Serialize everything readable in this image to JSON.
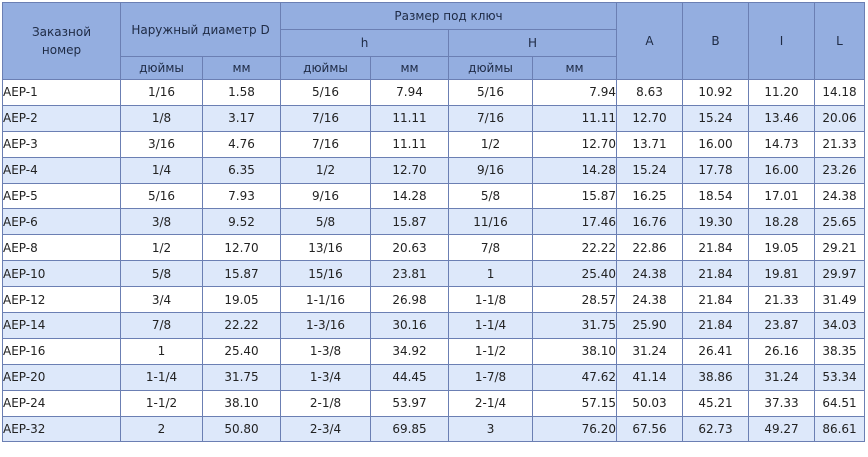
{
  "headers": {
    "order_number": "Заказной номер",
    "outer_diameter": "Наружный диаметр D",
    "wrench_size": "Размер под ключ",
    "h": "h",
    "H": "H",
    "A": "A",
    "B": "B",
    "I": "I",
    "L": "L",
    "inches": "дюймы",
    "mm": "мм"
  },
  "rows": [
    {
      "code": "AEP-1",
      "d_in": "1/16",
      "d_mm": "1.58",
      "h_in": "5/16",
      "h_mm": "7.94",
      "H_in": "5/16",
      "H_mm": "7.94",
      "A": "8.63",
      "B": "10.92",
      "I": "11.20",
      "L": "14.18"
    },
    {
      "code": "AEP-2",
      "d_in": "1/8",
      "d_mm": "3.17",
      "h_in": "7/16",
      "h_mm": "11.11",
      "H_in": "7/16",
      "H_mm": "11.11",
      "A": "12.70",
      "B": "15.24",
      "I": "13.46",
      "L": "20.06"
    },
    {
      "code": "AEP-3",
      "d_in": "3/16",
      "d_mm": "4.76",
      "h_in": "7/16",
      "h_mm": "11.11",
      "H_in": "1/2",
      "H_mm": "12.70",
      "A": "13.71",
      "B": "16.00",
      "I": "14.73",
      "L": "21.33"
    },
    {
      "code": "AEP-4",
      "d_in": "1/4",
      "d_mm": "6.35",
      "h_in": "1/2",
      "h_mm": "12.70",
      "H_in": "9/16",
      "H_mm": "14.28",
      "A": "15.24",
      "B": "17.78",
      "I": "16.00",
      "L": "23.26"
    },
    {
      "code": "AEP-5",
      "d_in": "5/16",
      "d_mm": "7.93",
      "h_in": "9/16",
      "h_mm": "14.28",
      "H_in": "5/8",
      "H_mm": "15.87",
      "A": "16.25",
      "B": "18.54",
      "I": "17.01",
      "L": "24.38"
    },
    {
      "code": "AEP-6",
      "d_in": "3/8",
      "d_mm": "9.52",
      "h_in": "5/8",
      "h_mm": "15.87",
      "H_in": "11/16",
      "H_mm": "17.46",
      "A": "16.76",
      "B": "19.30",
      "I": "18.28",
      "L": "25.65"
    },
    {
      "code": "AEP-8",
      "d_in": "1/2",
      "d_mm": "12.70",
      "h_in": "13/16",
      "h_mm": "20.63",
      "H_in": "7/8",
      "H_mm": "22.22",
      "A": "22.86",
      "B": "21.84",
      "I": "19.05",
      "L": "29.21"
    },
    {
      "code": "AEP-10",
      "d_in": "5/8",
      "d_mm": "15.87",
      "h_in": "15/16",
      "h_mm": "23.81",
      "H_in": "1",
      "H_mm": "25.40",
      "A": "24.38",
      "B": "21.84",
      "I": "19.81",
      "L": "29.97"
    },
    {
      "code": "AEP-12",
      "d_in": "3/4",
      "d_mm": "19.05",
      "h_in": "1-1/16",
      "h_mm": "26.98",
      "H_in": "1-1/8",
      "H_mm": "28.57",
      "A": "24.38",
      "B": "21.84",
      "I": "21.33",
      "L": "31.49"
    },
    {
      "code": "AEP-14",
      "d_in": "7/8",
      "d_mm": "22.22",
      "h_in": "1-3/16",
      "h_mm": "30.16",
      "H_in": "1-1/4",
      "H_mm": "31.75",
      "A": "25.90",
      "B": "21.84",
      "I": "23.87",
      "L": "34.03"
    },
    {
      "code": "AEP-16",
      "d_in": "1",
      "d_mm": "25.40",
      "h_in": "1-3/8",
      "h_mm": "34.92",
      "H_in": "1-1/2",
      "H_mm": "38.10",
      "A": "31.24",
      "B": "26.41",
      "I": "26.16",
      "L": "38.35"
    },
    {
      "code": "AEP-20",
      "d_in": "1-1/4",
      "d_mm": "31.75",
      "h_in": "1-3/4",
      "h_mm": "44.45",
      "H_in": "1-7/8",
      "H_mm": "47.62",
      "A": "41.14",
      "B": "38.86",
      "I": "31.24",
      "L": "53.34"
    },
    {
      "code": "AEP-24",
      "d_in": "1-1/2",
      "d_mm": "38.10",
      "h_in": "2-1/8",
      "h_mm": "53.97",
      "H_in": "2-1/4",
      "H_mm": "57.15",
      "A": "50.03",
      "B": "45.21",
      "I": "37.33",
      "L": "64.51"
    },
    {
      "code": "AEP-32",
      "d_in": "2",
      "d_mm": "50.80",
      "h_in": "2-3/4",
      "h_mm": "69.85",
      "H_in": "3",
      "H_mm": "76.20",
      "A": "67.56",
      "B": "62.73",
      "I": "49.27",
      "L": "86.61"
    }
  ]
}
